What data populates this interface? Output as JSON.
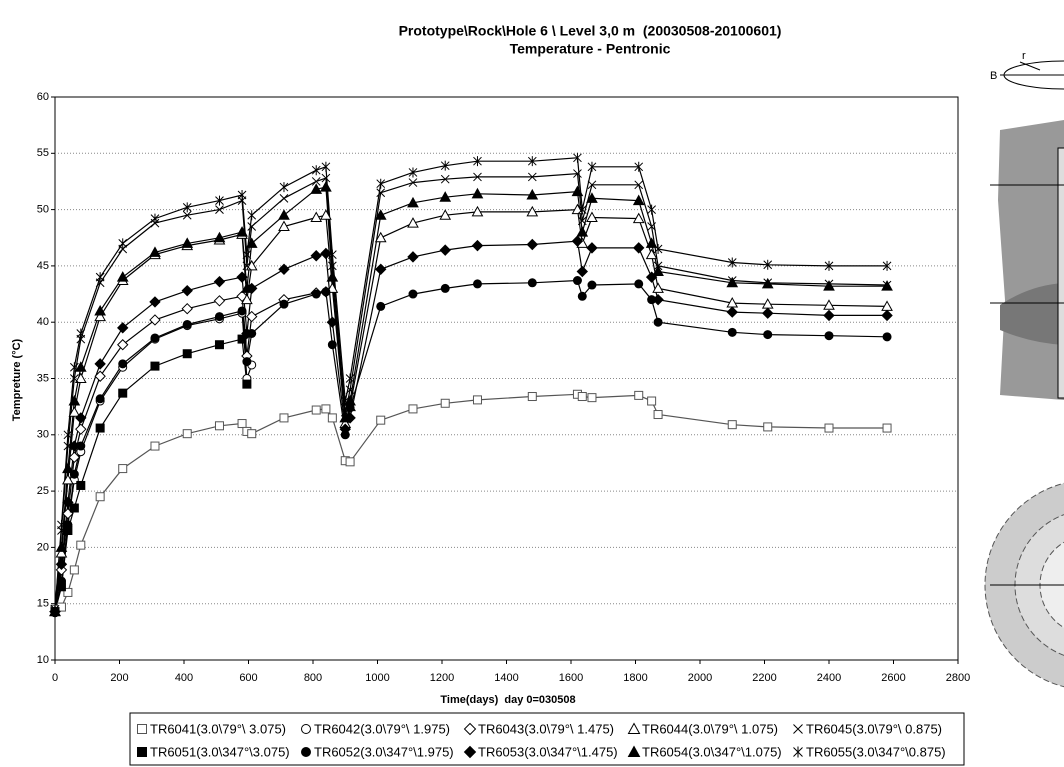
{
  "chart_data": {
    "type": "line",
    "title": "Prototype\\Rock\\Hole 6 \\ Level 3,0 m  (20030508-20100601)",
    "subtitle": "Temperature - Pentronic",
    "x_label": "Time(days)  day 0=030508",
    "y_label": "Tempreture (°C)",
    "xlim": [
      0,
      2800
    ],
    "ylim": [
      10,
      60
    ],
    "xticks": [
      0,
      200,
      400,
      600,
      800,
      1000,
      1200,
      1400,
      1600,
      1800,
      2000,
      2200,
      2400,
      2600,
      2800
    ],
    "yticks": [
      10,
      15,
      20,
      25,
      30,
      35,
      40,
      45,
      50,
      55,
      60
    ],
    "grid": true,
    "x": [
      0,
      20,
      40,
      60,
      80,
      140,
      210,
      310,
      410,
      510,
      580,
      595,
      610,
      710,
      810,
      840,
      860,
      900,
      915,
      1010,
      1110,
      1210,
      1310,
      1480,
      1620,
      1635,
      1665,
      1810,
      1850,
      1870,
      2100,
      2210,
      2400,
      2580
    ],
    "series": [
      {
        "name": "TR6041(3.0\\79°\\ 3.075)",
        "color": "#555555",
        "marker": "square",
        "filled": false,
        "values": [
          14.5,
          14.7,
          16,
          18,
          20.2,
          24.5,
          27,
          29,
          30.1,
          30.8,
          31,
          30.3,
          30.1,
          31.5,
          32.2,
          32.3,
          31.5,
          27.7,
          27.6,
          31.3,
          32.3,
          32.8,
          33.1,
          33.4,
          33.6,
          33.4,
          33.3,
          33.5,
          33,
          31.8,
          30.9,
          30.7,
          30.6,
          30.6
        ]
      },
      {
        "name": "TR6042(3.0\\79°\\ 1.975)",
        "color": "#000000",
        "marker": "circle",
        "filled": false,
        "values": [
          14.2,
          17,
          22,
          26,
          28.5,
          33,
          36,
          38.5,
          39.7,
          40.3,
          40.8,
          35,
          36.2,
          null,
          null,
          null,
          null,
          null,
          null,
          null,
          null,
          null,
          null,
          null,
          null,
          null,
          null,
          null,
          null,
          null,
          null,
          null,
          null,
          null
        ]
      },
      {
        "name": "TR6043(3.0\\79°\\ 1.475)",
        "color": "#000000",
        "marker": "diamond",
        "filled": false,
        "values": [
          14.3,
          18,
          23,
          28,
          30.5,
          35.2,
          38,
          40.2,
          41.2,
          41.9,
          42.3,
          37,
          40.5,
          42,
          42.6,
          42.7,
          null,
          null,
          null,
          null,
          null,
          null,
          null,
          null,
          null,
          null,
          null,
          null,
          null,
          null,
          null,
          null,
          null,
          null
        ]
      },
      {
        "name": "TR6044(3.0\\79°\\ 1.075)",
        "color": "#000000",
        "marker": "triangle",
        "filled": false,
        "values": [
          14.3,
          19.5,
          26,
          32,
          35,
          40.5,
          43.7,
          46,
          46.8,
          47.3,
          47.8,
          42,
          45,
          48.5,
          49.3,
          49.5,
          43,
          31,
          32.5,
          47.5,
          48.8,
          49.5,
          49.8,
          49.8,
          50,
          47,
          49.3,
          49.2,
          46,
          43,
          41.7,
          41.6,
          41.5,
          41.4
        ]
      },
      {
        "name": "TR6045(3.0\\79°\\ 0.875)",
        "color": "#000000",
        "marker": "x",
        "filled": false,
        "values": [
          14.5,
          21.5,
          29,
          35,
          38.5,
          43.5,
          46.5,
          48.8,
          49.5,
          50,
          50.8,
          45,
          48.5,
          51,
          52.5,
          52.8,
          45,
          32,
          34,
          51.5,
          52.4,
          52.7,
          52.9,
          52.9,
          53.2,
          49,
          52.2,
          52.2,
          48.5,
          45,
          43.7,
          43.5,
          43.4,
          43.3
        ]
      },
      {
        "name": "TR6051(3.0\\347°\\3.075)",
        "color": "#000000",
        "marker": "square",
        "filled": true,
        "values": [
          14.3,
          16.5,
          21.5,
          23.5,
          25.5,
          30.6,
          33.7,
          36.1,
          37.2,
          38,
          38.5,
          34.5,
          null,
          null,
          null,
          null,
          null,
          null,
          null,
          null,
          null,
          null,
          null,
          null,
          null,
          null,
          null,
          null,
          null,
          null,
          null,
          null,
          null,
          null
        ]
      },
      {
        "name": "TR6052(3.0\\347°\\1.975)",
        "color": "#000000",
        "marker": "circle",
        "filled": true,
        "values": [
          14.2,
          17,
          22,
          26.5,
          29,
          33.2,
          36.3,
          38.6,
          39.8,
          40.5,
          41,
          36.5,
          39,
          41.6,
          42.5,
          42.7,
          38,
          30,
          32.4,
          41.4,
          42.5,
          43,
          43.4,
          43.5,
          43.7,
          42.3,
          43.3,
          43.4,
          42,
          40,
          39.1,
          38.9,
          38.8,
          38.7
        ]
      },
      {
        "name": "TR6053(3.0\\347°\\1.475)",
        "color": "#000000",
        "marker": "diamond",
        "filled": true,
        "values": [
          14.3,
          18.5,
          24,
          29,
          31.5,
          36.3,
          39.5,
          41.8,
          42.8,
          43.6,
          44,
          39,
          43,
          44.7,
          45.9,
          46.1,
          40,
          30.5,
          31.5,
          44.7,
          45.8,
          46.4,
          46.8,
          46.9,
          47.2,
          44.5,
          46.6,
          46.6,
          44,
          42,
          40.9,
          40.8,
          40.6,
          40.6
        ]
      },
      {
        "name": "TR6054(3.0\\347°\\1.075)",
        "color": "#000000",
        "marker": "triangle",
        "filled": true,
        "values": [
          14.3,
          20,
          27,
          33,
          36,
          41,
          44,
          46.2,
          47,
          47.5,
          48,
          43,
          47,
          49.5,
          51.8,
          52,
          44,
          31.5,
          33,
          49.5,
          50.6,
          51.1,
          51.4,
          51.3,
          51.6,
          48,
          51,
          50.8,
          47,
          44.5,
          43.5,
          43.4,
          43.2,
          43.2
        ]
      },
      {
        "name": "TR6055(3.0\\347°\\0.875)",
        "color": "#000000",
        "marker": "star",
        "filled": false,
        "values": [
          14.5,
          22,
          30,
          36,
          39,
          44,
          47,
          49.2,
          50.2,
          50.8,
          51.3,
          46,
          49.5,
          52,
          53.5,
          53.8,
          46,
          33,
          35,
          52.3,
          53.3,
          53.9,
          54.3,
          54.3,
          54.6,
          50,
          53.8,
          53.8,
          50,
          46.5,
          45.3,
          45.1,
          45,
          45
        ]
      }
    ]
  },
  "diagram": {
    "labels": [
      "r",
      "B"
    ]
  }
}
